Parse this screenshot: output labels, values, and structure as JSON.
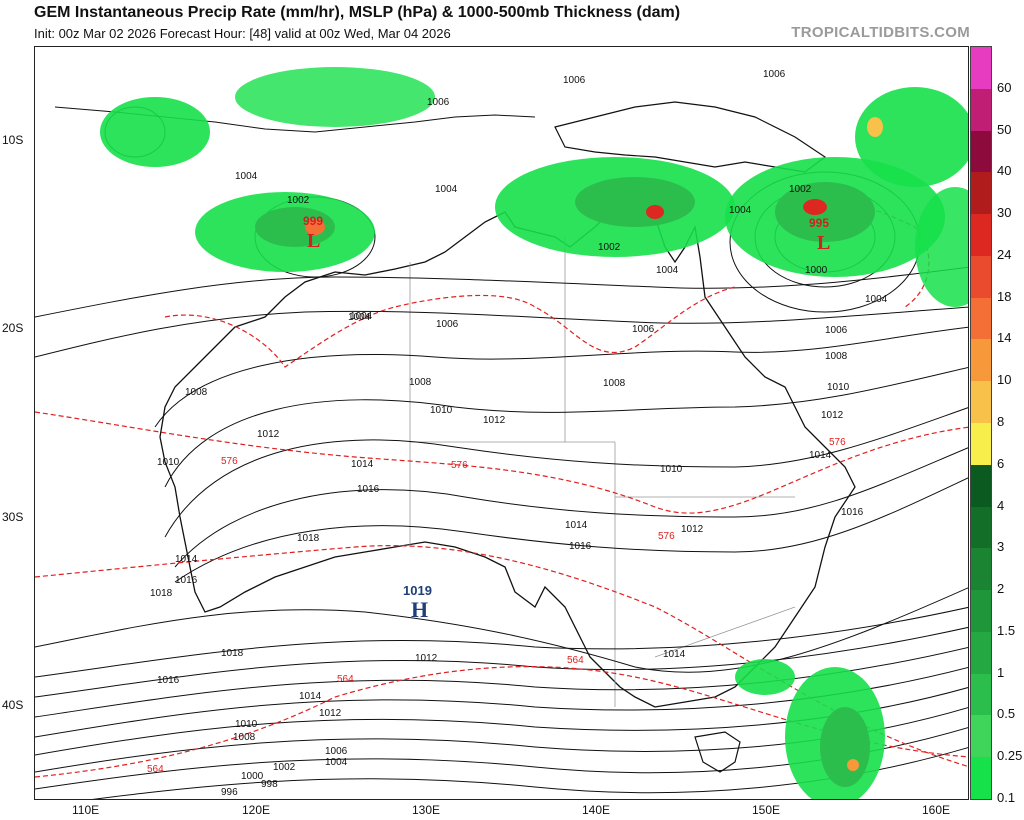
{
  "header": {
    "title": "GEM Instantaneous Precip Rate (mm/hr), MSLP (hPa) & 1000-500mb Thickness (dam)",
    "subtitle": "Init: 00z Mar 02 2026   Forecast Hour: [48]   valid at 00z Wed, Mar 04 2026",
    "watermark": "TROPICALTIDBITS.COM"
  },
  "axes": {
    "lat_labels": [
      "10S",
      "20S",
      "30S",
      "40S"
    ],
    "lon_labels": [
      "110E",
      "120E",
      "130E",
      "140E",
      "150E",
      "160E"
    ]
  },
  "colorbar": {
    "labels": [
      "60",
      "50",
      "40",
      "30",
      "24",
      "18",
      "14",
      "10",
      "8",
      "6",
      "4",
      "3",
      "2",
      "1.5",
      "1",
      "0.5",
      "0.25",
      "0.1"
    ],
    "colors": [
      "#e83cc0",
      "#c01e74",
      "#8c0a3c",
      "#b01c1c",
      "#dc2820",
      "#ea4a2e",
      "#f36f36",
      "#f7983a",
      "#f8c14a",
      "#f7ee4c",
      "#0b5a20",
      "#136e28",
      "#1a8432",
      "#1f963a",
      "#24a842",
      "#2cbe4c",
      "#3fd55a",
      "#16e04a"
    ]
  },
  "pressure_centers": [
    {
      "type": "L",
      "value": "999",
      "color": "#d42020"
    },
    {
      "type": "L",
      "value": "995",
      "color": "#d42020"
    },
    {
      "type": "H",
      "value": "1019",
      "color": "#1e3f78"
    }
  ],
  "isobar_labels": [
    "1006",
    "1004",
    "1002",
    "1004",
    "1008",
    "1010",
    "1012",
    "1014",
    "1016",
    "1018",
    "1018",
    "1016",
    "1014",
    "1012",
    "1010",
    "1008",
    "1006",
    "1004",
    "1002",
    "1000",
    "998",
    "996",
    "1012",
    "1008",
    "1006",
    "1004",
    "1004",
    "1002",
    "1004",
    "1006",
    "1008",
    "1010",
    "1012",
    "1014",
    "1016",
    "1018",
    "1014",
    "1016",
    "1014",
    "1012",
    "1010",
    "1008",
    "1006",
    "1010",
    "1012",
    "1014",
    "1016",
    "1006",
    "1004",
    "1002",
    "1000",
    "1004",
    "1006"
  ],
  "thickness_labels": [
    "576",
    "576",
    "576",
    "576",
    "564",
    "564",
    "564"
  ],
  "colors": {
    "land": "#ffffff",
    "coast": "#111111",
    "isobar": "#111111",
    "thickness": "#e02020",
    "precip_light": "#16e04a",
    "precip_mid": "#2cbe4c",
    "precip_heavy": "#136e28"
  }
}
